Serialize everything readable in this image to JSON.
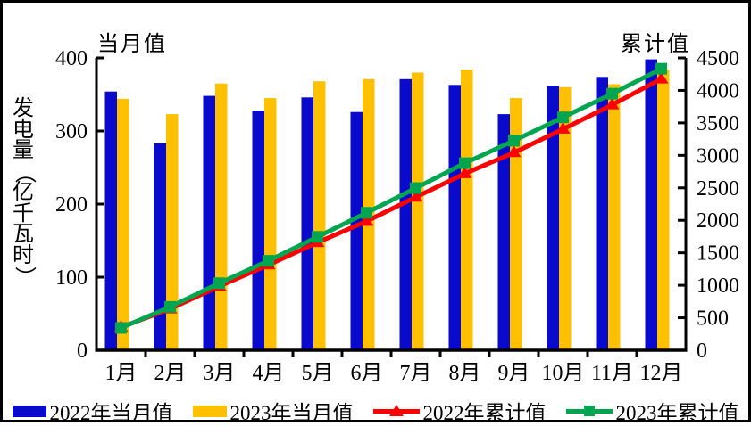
{
  "page": {
    "background": "#ffffff",
    "border_color": "#000000"
  },
  "chart_data": {
    "type": "combo-bar-line",
    "categories": [
      "1月",
      "2月",
      "3月",
      "4月",
      "5月",
      "6月",
      "7月",
      "8月",
      "9月",
      "10月",
      "11月",
      "12月"
    ],
    "series": [
      {
        "name": "2022年当月值",
        "type": "bar",
        "axis": "left",
        "color": "#0A0ACC",
        "values": [
          354,
          283,
          348,
          328,
          346,
          326,
          371,
          363,
          323,
          362,
          374,
          398
        ]
      },
      {
        "name": "2023年当月值",
        "type": "bar",
        "axis": "left",
        "color": "#FFC000",
        "values": [
          344,
          323,
          365,
          345,
          368,
          371,
          380,
          384,
          345,
          360,
          364,
          384
        ]
      },
      {
        "name": "2022年累计值",
        "type": "line",
        "axis": "right",
        "color": "#FF0000",
        "marker": "triangle",
        "values": [
          354,
          637,
          985,
          1313,
          1659,
          1985,
          2356,
          2719,
          3042,
          3404,
          3778,
          4176
        ]
      },
      {
        "name": "2023年累计值",
        "type": "line",
        "axis": "right",
        "color": "#00A550",
        "marker": "square",
        "values": [
          344,
          667,
          1032,
          1377,
          1745,
          2116,
          2496,
          2880,
          3225,
          3585,
          3949,
          4333
        ]
      }
    ],
    "left_axis": {
      "title": "当月值",
      "min": 0,
      "max": 400,
      "step": 100,
      "ticks": [
        0,
        100,
        200,
        300,
        400
      ]
    },
    "right_axis": {
      "title": "累计值",
      "min": 0,
      "max": 4500,
      "step": 500,
      "ticks": [
        0,
        500,
        1000,
        1500,
        2000,
        2500,
        3000,
        3500,
        4000,
        4500
      ]
    },
    "ylabel": "发电量（亿千瓦时）",
    "xlabel": "",
    "title": "",
    "grid": "off",
    "legend_position": "bottom"
  }
}
